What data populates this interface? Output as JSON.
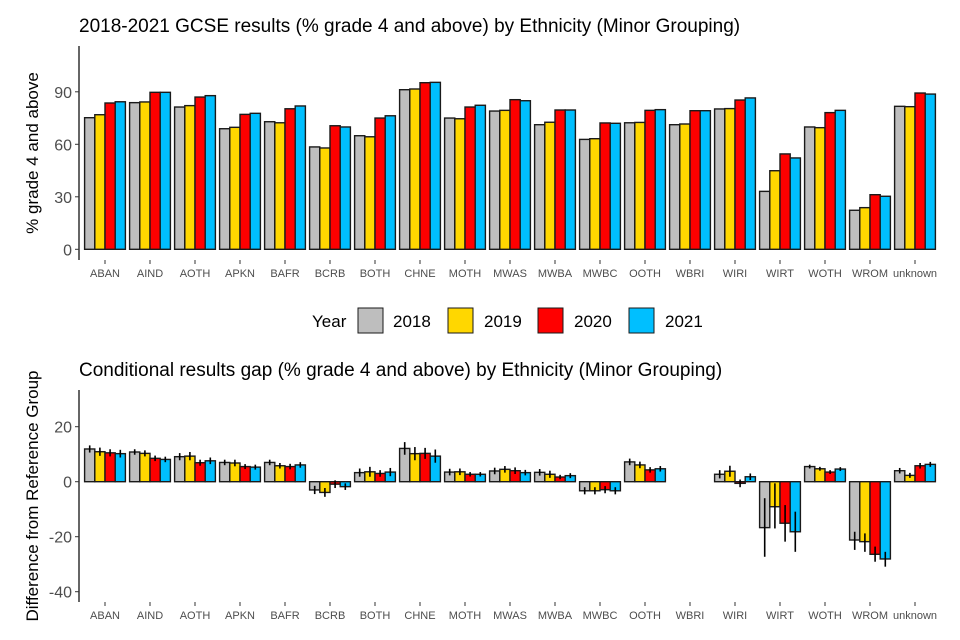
{
  "legend": {
    "title": "Year",
    "items": [
      {
        "label": "2018",
        "color": "#BEBEBE"
      },
      {
        "label": "2019",
        "color": "#FFD700"
      },
      {
        "label": "2020",
        "color": "#FF0000"
      },
      {
        "label": "2021",
        "color": "#00BFFF"
      }
    ]
  },
  "chart_data": [
    {
      "type": "bar",
      "title": "2018-2021 GCSE results (% grade 4 and above) by Ethnicity (Minor Grouping)",
      "xlabel": "",
      "ylabel": "% grade 4 and above",
      "ylim": [
        0,
        115
      ],
      "yticks": [
        0,
        30,
        60,
        90
      ],
      "grid": false,
      "legend_position": "bottom",
      "categories": [
        "ABAN",
        "AIND",
        "AOTH",
        "APKN",
        "BAFR",
        "BCRB",
        "BOTH",
        "CHNE",
        "MOTH",
        "MWAS",
        "MWBA",
        "MWBC",
        "OOTH",
        "WBRI",
        "WIRI",
        "WIRT",
        "WOTH",
        "WROM",
        "unknown"
      ],
      "series": [
        {
          "name": "2018",
          "values": [
            75.2,
            83.8,
            81.3,
            68.9,
            72.9,
            58.5,
            64.9,
            91.2,
            75.0,
            79.0,
            71.2,
            62.8,
            72.3,
            71.2,
            80.2,
            33.1,
            69.9,
            22.3,
            81.7
          ]
        },
        {
          "name": "2019",
          "values": [
            76.9,
            84.2,
            82.1,
            69.7,
            72.3,
            57.9,
            64.3,
            91.6,
            74.6,
            79.4,
            72.6,
            63.2,
            72.5,
            71.6,
            80.4,
            44.9,
            69.5,
            23.8,
            81.5
          ]
        },
        {
          "name": "2020",
          "values": [
            83.6,
            89.7,
            87.0,
            77.1,
            80.3,
            70.6,
            75.0,
            95.2,
            81.3,
            85.5,
            79.6,
            72.2,
            79.4,
            79.2,
            85.3,
            54.5,
            78.1,
            31.2,
            89.3
          ]
        },
        {
          "name": "2021",
          "values": [
            84.3,
            89.7,
            87.8,
            77.7,
            81.9,
            69.9,
            76.3,
            95.4,
            82.3,
            84.9,
            79.6,
            72.0,
            79.8,
            79.2,
            86.5,
            52.2,
            79.4,
            30.3,
            88.7
          ]
        }
      ]
    },
    {
      "type": "bar",
      "title": "Conditional results gap (% grade 4 and above) by Ethnicity (Minor Grouping)",
      "xlabel": "",
      "ylabel": "Difference from Reference Group",
      "ylim": [
        -43.7,
        33.4
      ],
      "yticks": [
        -40,
        -20,
        0,
        20
      ],
      "grid": false,
      "error_bars": true,
      "categories": [
        "ABAN",
        "AIND",
        "AOTH",
        "APKN",
        "BAFR",
        "BCRB",
        "BOTH",
        "CHNE",
        "MOTH",
        "MWAS",
        "MWBA",
        "MWBC",
        "OOTH",
        "WBRI",
        "WIRI",
        "WIRT",
        "WOTH",
        "WROM",
        "unknown"
      ],
      "series": [
        {
          "name": "2018",
          "values": [
            11.9,
            10.8,
            9.1,
            7.0,
            7.0,
            -3.0,
            3.3,
            12.1,
            3.5,
            3.9,
            3.4,
            -3.3,
            7.2,
            null,
            2.7,
            -16.7,
            5.5,
            -21.2,
            4.0
          ],
          "err_low": [
            10.6,
            9.8,
            7.8,
            6.0,
            6.0,
            -4.5,
            1.8,
            9.8,
            2.3,
            2.7,
            2.2,
            -4.6,
            6.0,
            null,
            1.2,
            -27.3,
            4.8,
            -24.8,
            3.0
          ],
          "err_high": [
            13.2,
            11.8,
            10.4,
            8.0,
            8.0,
            -1.5,
            4.8,
            14.4,
            4.7,
            5.1,
            4.6,
            -2.0,
            8.4,
            null,
            4.2,
            -6.0,
            6.2,
            -18.2,
            5.0
          ]
        },
        {
          "name": "2019",
          "values": [
            10.9,
            10.3,
            9.3,
            6.8,
            5.8,
            -3.9,
            3.6,
            10.2,
            3.6,
            4.5,
            2.7,
            -3.3,
            6.1,
            null,
            3.8,
            -9.1,
            4.7,
            -21.8,
            2.3
          ],
          "err_low": [
            9.4,
            9.2,
            7.8,
            5.6,
            4.8,
            -5.5,
            1.8,
            7.8,
            2.4,
            3.3,
            1.4,
            -4.6,
            4.9,
            null,
            1.8,
            -17.0,
            4.0,
            -25.5,
            1.4
          ],
          "err_high": [
            12.4,
            11.4,
            10.8,
            8.0,
            6.8,
            -2.3,
            5.4,
            12.6,
            4.8,
            5.7,
            4.0,
            -2.0,
            7.3,
            null,
            5.8,
            -0.6,
            5.4,
            -18.8,
            3.2
          ]
        },
        {
          "name": "2020",
          "values": [
            10.5,
            8.5,
            6.9,
            5.5,
            5.5,
            -0.9,
            3.0,
            10.3,
            2.7,
            4.0,
            1.7,
            -2.9,
            4.3,
            null,
            -0.6,
            -15.1,
            3.5,
            -26.4,
            5.8
          ],
          "err_low": [
            9.2,
            7.5,
            5.8,
            4.6,
            4.5,
            -2.3,
            1.8,
            8.3,
            1.9,
            2.8,
            0.9,
            -4.2,
            3.3,
            null,
            -2.0,
            -21.8,
            2.8,
            -29.1,
            4.8
          ],
          "err_high": [
            11.8,
            9.5,
            8.0,
            6.4,
            6.5,
            0.5,
            4.2,
            12.3,
            3.5,
            5.2,
            2.5,
            -1.6,
            5.3,
            null,
            0.8,
            -8.5,
            4.2,
            -23.6,
            6.8
          ]
        },
        {
          "name": "2021",
          "values": [
            10.2,
            8.1,
            7.6,
            5.3,
            6.1,
            -1.8,
            3.5,
            9.3,
            2.7,
            3.3,
            2.2,
            -3.3,
            4.7,
            null,
            1.8,
            -18.2,
            4.6,
            -28.1,
            6.3
          ],
          "err_low": [
            8.8,
            7.1,
            6.4,
            4.4,
            5.1,
            -3.0,
            2.0,
            6.9,
            1.9,
            2.3,
            1.3,
            -4.6,
            3.7,
            null,
            0.6,
            -25.5,
            3.9,
            -30.9,
            5.4
          ],
          "err_high": [
            11.6,
            9.1,
            8.8,
            6.2,
            7.1,
            -0.6,
            5.0,
            11.7,
            3.5,
            4.3,
            3.1,
            -2.0,
            5.7,
            null,
            3.0,
            -10.9,
            5.3,
            -25.5,
            7.2
          ]
        }
      ]
    }
  ]
}
